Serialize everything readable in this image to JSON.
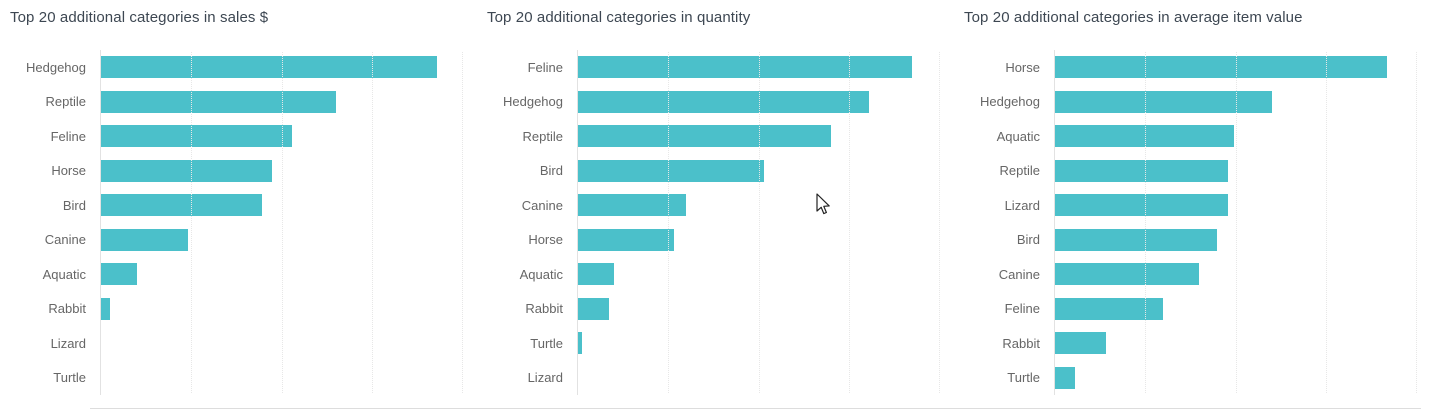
{
  "page": {
    "background": "#ffffff",
    "divider_color": "#dddddd"
  },
  "theme": {
    "accent": "#4bc0ca",
    "title_color": "#3d4752",
    "label_color": "#666666",
    "grid_color": "#e7e7e7"
  },
  "cursor": {
    "present": true
  },
  "chart_data": [
    {
      "type": "bar",
      "orientation": "horizontal",
      "title": "Top 20 additional categories in sales $",
      "categories": [
        "Hedgehog",
        "Reptile",
        "Feline",
        "Horse",
        "Bird",
        "Canine",
        "Aquatic",
        "Rabbit",
        "Lizard",
        "Turtle"
      ],
      "values_pct": [
        93,
        65,
        53,
        47.5,
        44.5,
        24,
        10,
        2.5,
        0,
        0
      ],
      "value_axis_labels_visible": false,
      "grid": "vertical-dotted",
      "legend": "none"
    },
    {
      "type": "bar",
      "orientation": "horizontal",
      "title": "Top 20 additional categories in quantity",
      "categories": [
        "Feline",
        "Hedgehog",
        "Reptile",
        "Bird",
        "Canine",
        "Horse",
        "Aquatic",
        "Rabbit",
        "Turtle",
        "Lizard"
      ],
      "values_pct": [
        92.5,
        80.5,
        70,
        51.5,
        30,
        26.5,
        10,
        8.5,
        1,
        0
      ],
      "value_axis_labels_visible": false,
      "grid": "vertical-dotted",
      "legend": "none"
    },
    {
      "type": "bar",
      "orientation": "horizontal",
      "title": "Top 20 additional categories in average item value",
      "categories": [
        "Horse",
        "Hedgehog",
        "Aquatic",
        "Reptile",
        "Lizard",
        "Bird",
        "Canine",
        "Feline",
        "Rabbit",
        "Turtle"
      ],
      "values_pct": [
        92,
        60,
        49.5,
        48,
        48,
        45,
        40,
        30,
        14,
        5.5
      ],
      "value_axis_labels_visible": false,
      "grid": "vertical-dotted",
      "legend": "none"
    }
  ]
}
